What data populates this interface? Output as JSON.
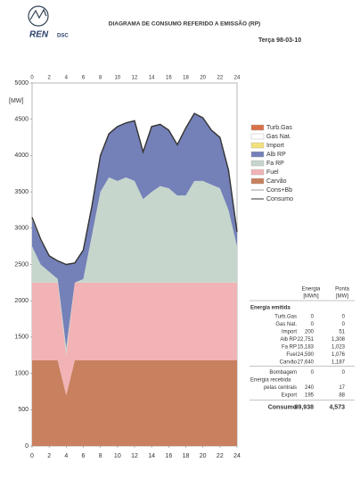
{
  "header": {
    "logo": "REN",
    "unit": "DSC",
    "title": "DIAGRAMA DE CONSUMO REFERIDO A EMISSÃO (RP)",
    "date": "Terça  98-03-10"
  },
  "chart_data": {
    "type": "area",
    "y_label": "[MW]",
    "x": [
      0,
      1,
      2,
      3,
      4,
      5,
      6,
      7,
      8,
      9,
      10,
      11,
      12,
      13,
      14,
      15,
      16,
      17,
      18,
      19,
      20,
      21,
      22,
      23,
      24
    ],
    "xlim": [
      0,
      24
    ],
    "xticks": [
      0,
      2,
      4,
      6,
      8,
      10,
      12,
      14,
      16,
      18,
      20,
      22,
      24
    ],
    "ylim": [
      0,
      5000
    ],
    "yticks": [
      0,
      500,
      1000,
      1500,
      2000,
      2500,
      3000,
      3500,
      4000,
      4500,
      5000
    ],
    "series": [
      {
        "name": "Turb.Gas",
        "kind": "area",
        "color": "#d9704a",
        "values": [
          0,
          0,
          0,
          0,
          0,
          0,
          0,
          0,
          0,
          0,
          0,
          0,
          0,
          0,
          0,
          0,
          0,
          0,
          0,
          0,
          0,
          0,
          0,
          0,
          0
        ]
      },
      {
        "name": "Gas Nat.",
        "kind": "area",
        "color": "#ffffff",
        "values": [
          0,
          0,
          0,
          0,
          0,
          0,
          0,
          0,
          0,
          0,
          0,
          0,
          0,
          0,
          0,
          0,
          0,
          0,
          0,
          0,
          0,
          0,
          0,
          0,
          0
        ]
      },
      {
        "name": "Import",
        "kind": "area",
        "color": "#f3e27a",
        "values": [
          30,
          20,
          0,
          0,
          0,
          0,
          0,
          0,
          0,
          0,
          0,
          0,
          0,
          0,
          0,
          0,
          0,
          0,
          0,
          0,
          0,
          0,
          0,
          0,
          0
        ]
      },
      {
        "name": "Alb RP",
        "kind": "area",
        "color": "#7480b8",
        "values": [
          370,
          330,
          220,
          250,
          1150,
          270,
          400,
          400,
          500,
          600,
          750,
          750,
          830,
          650,
          900,
          850,
          800,
          700,
          930,
          930,
          870,
          750,
          700,
          550,
          200
        ]
      },
      {
        "name": "Fa RP",
        "kind": "area",
        "color": "#c6d6cc",
        "values": [
          500,
          250,
          150,
          50,
          100,
          0,
          50,
          650,
          1250,
          1450,
          1400,
          1450,
          1400,
          1150,
          1250,
          1330,
          1300,
          1200,
          1200,
          1400,
          1400,
          1350,
          1300,
          1000,
          500
        ]
      },
      {
        "name": "Fuel",
        "kind": "area",
        "color": "#f1b3b5",
        "values": [
          1070,
          1070,
          1070,
          1070,
          550,
          1070,
          1070,
          1070,
          1070,
          1070,
          1070,
          1070,
          1070,
          1070,
          1070,
          1070,
          1070,
          1070,
          1070,
          1070,
          1070,
          1070,
          1070,
          1070,
          1070
        ]
      },
      {
        "name": "Carvão",
        "kind": "area",
        "color": "#c8805e",
        "values": [
          1180,
          1180,
          1180,
          1180,
          700,
          1180,
          1180,
          1180,
          1180,
          1180,
          1180,
          1180,
          1180,
          1180,
          1180,
          1180,
          1180,
          1180,
          1180,
          1180,
          1180,
          1180,
          1180,
          1180,
          1180
        ]
      },
      {
        "name": "Cons+Bb",
        "kind": "line",
        "color": "#e8e8e8",
        "values": [
          3150,
          2850,
          2620,
          2550,
          2500,
          2520,
          2700,
          3300,
          4000,
          4300,
          4400,
          4450,
          4480,
          4050,
          4400,
          4430,
          4350,
          4150,
          4380,
          4580,
          4520,
          4350,
          4250,
          3800,
          2950
        ]
      },
      {
        "name": "Consumo",
        "kind": "line",
        "color": "#333333",
        "values": [
          3150,
          2850,
          2620,
          2550,
          2500,
          2520,
          2700,
          3300,
          4000,
          4300,
          4400,
          4450,
          4480,
          4050,
          4400,
          4430,
          4350,
          4150,
          4380,
          4580,
          4520,
          4350,
          4250,
          3800,
          2950
        ]
      }
    ]
  },
  "table": {
    "headers": [
      [
        "Energia",
        "[MWh]"
      ],
      [
        "Ponta",
        "[MW]"
      ]
    ],
    "section": "Energia emitida",
    "rows": [
      [
        "Turb.Gas",
        "0",
        "0"
      ],
      [
        "Gas Nat.",
        "0",
        "0"
      ],
      [
        "Import",
        "200",
        "51"
      ],
      [
        "Alb RP",
        "22,751",
        "1,308"
      ],
      [
        "Fa RP",
        "15,183",
        "1,023"
      ],
      [
        "Fuel",
        "24,590",
        "1,076"
      ],
      [
        "Carvão",
        "27,640",
        "1,187"
      ],
      [
        "Bombagem",
        "0",
        "0"
      ],
      [
        "Energia recebida"
      ],
      [
        "pelas centrais",
        "240",
        "17"
      ],
      [
        "Export",
        "195",
        "88"
      ]
    ],
    "total": [
      "Consumo",
      "89,938",
      "4,573"
    ]
  }
}
